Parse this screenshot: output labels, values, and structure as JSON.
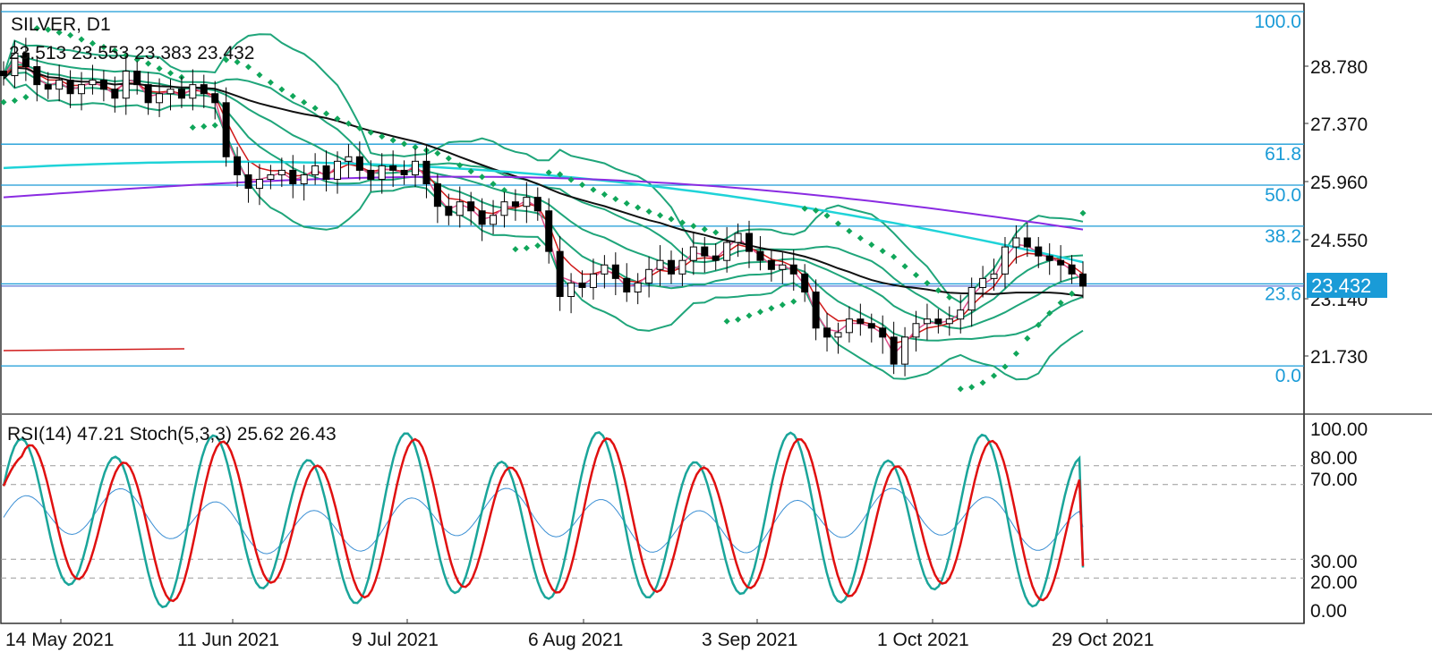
{
  "symbol_label": "SILVER, D1",
  "ohlc_label": "23.513 23.553 23.383 23.432",
  "indicator_label": "RSI(14) 47.21 Stoch(5,3,3) 25.62 26.43",
  "current_price_label": "23.432",
  "colors": {
    "fib_line": "#1a9bd7",
    "bollinger": "#1fa57a",
    "sma_black": "#111111",
    "sma_cyan": "#1fd3d8",
    "sma_purple": "#8a2be2",
    "ema_pink": "#e0508c",
    "ema_red": "#d01a1a",
    "psar": "#10a65a",
    "stoch_main": "#1aa59a",
    "stoch_signal": "#e01010",
    "rsi": "#3b8fd4",
    "badge": "#1a9bd7"
  },
  "chart_data": [
    {
      "type": "candlestick",
      "title": "SILVER, D1",
      "ylim": [
        20.4,
        29.5
      ],
      "price_ticks": [
        "28.780",
        "27.370",
        "25.960",
        "24.550",
        "23.140",
        "21.730"
      ],
      "date_ticks": [
        "14 May 2021",
        "11 Jun 2021",
        "9 Jul 2021",
        "6 Aug 2021",
        "3 Sep 2021",
        "1 Oct 2021",
        "29 Oct 2021"
      ],
      "fibonacci_levels": [
        {
          "label": "100.0",
          "price": 29.52
        },
        {
          "label": "61.8",
          "price": 26.58
        },
        {
          "label": "50.0",
          "price": 25.67
        },
        {
          "label": "38.2",
          "price": 24.76
        },
        {
          "label": "23.6",
          "price": 23.48
        },
        {
          "label": "0.0",
          "price": 21.66
        }
      ],
      "last_price": 23.432,
      "close_series": [
        28.1,
        28.6,
        28.3,
        27.9,
        27.8,
        28.0,
        27.7,
        27.9,
        28.0,
        27.8,
        27.6,
        28.2,
        27.9,
        27.5,
        27.7,
        27.8,
        27.6,
        27.9,
        27.7,
        27.5,
        26.3,
        25.9,
        25.6,
        25.8,
        25.9,
        26.0,
        25.7,
        25.9,
        26.1,
        25.8,
        26.2,
        26.3,
        26.0,
        25.8,
        26.1,
        26.0,
        25.9,
        26.2,
        25.7,
        25.2,
        25.0,
        25.3,
        25.1,
        24.8,
        25.0,
        25.3,
        25.2,
        25.4,
        25.1,
        24.2,
        23.2,
        23.5,
        23.4,
        23.7,
        23.9,
        23.6,
        23.3,
        23.5,
        23.8,
        24.0,
        23.7,
        24.0,
        24.3,
        24.1,
        24.0,
        24.4,
        24.6,
        24.2,
        24.0,
        23.8,
        23.9,
        23.7,
        23.3,
        22.5,
        22.3,
        22.4,
        22.7,
        22.6,
        22.5,
        22.3,
        21.7,
        22.3,
        22.6,
        22.7,
        22.6,
        22.7,
        22.9,
        23.4,
        23.6,
        23.7,
        24.3,
        24.5,
        24.3,
        24.1,
        24.0,
        23.9,
        23.7,
        23.43
      ],
      "sma_200_start": 25.4,
      "sma_200_end": 24.75
    },
    {
      "type": "line",
      "title": "RSI(14) 47.21 Stoch(5,3,3) 25.62 26.43",
      "ylim": [
        0,
        100
      ],
      "level_ticks": [
        "100.00",
        "80.00",
        "70.00",
        "30.00",
        "20.00",
        "0.00"
      ],
      "series": [
        {
          "name": "RSI(14)",
          "last": 47.21
        },
        {
          "name": "Stoch(5,3,3)",
          "last_main": 25.62,
          "last_signal": 26.43
        }
      ]
    }
  ]
}
